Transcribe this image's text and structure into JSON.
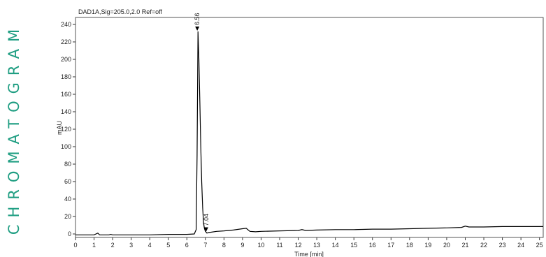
{
  "side_title": "CHROMATOGRAM",
  "chart_data": {
    "type": "line",
    "title": "DAD1A,Sig=205.0,2.0  Ref=off",
    "xlabel": "Time [min]",
    "ylabel": "mAU",
    "xlim": [
      0,
      25.2
    ],
    "ylim": [
      -4,
      248
    ],
    "x_ticks": [
      0,
      1,
      2,
      3,
      4,
      5,
      6,
      7,
      8,
      9,
      10,
      11,
      12,
      13,
      14,
      15,
      16,
      17,
      18,
      19,
      20,
      21,
      22,
      23,
      24,
      25
    ],
    "y_ticks": [
      0,
      20,
      40,
      60,
      80,
      100,
      120,
      140,
      160,
      180,
      200,
      220,
      240
    ],
    "grid": false,
    "line_color": "#000000",
    "series": [
      {
        "x": [
          0,
          1.0,
          1.2,
          1.3,
          1.4,
          1.8,
          1.9,
          2.0,
          3,
          4,
          5,
          6,
          6.4,
          6.5,
          6.55,
          6.6,
          6.65,
          6.7,
          6.75,
          6.8,
          6.85,
          6.9,
          6.95,
          7.0,
          7.04,
          7.08,
          7.15,
          7.3,
          7.6,
          8.0,
          8.5,
          9.0,
          9.2,
          9.4,
          9.7,
          10,
          11,
          12,
          12.2,
          12.4,
          13,
          14,
          15,
          16,
          17,
          18,
          19,
          20,
          20.8,
          21.0,
          21.2,
          22,
          23,
          24,
          25,
          25.2
        ],
        "y": [
          -1,
          -1,
          1,
          -1,
          -1,
          -1,
          -0.5,
          -1,
          -1,
          -1,
          -0.5,
          -0.5,
          0,
          5,
          90,
          232,
          200,
          150,
          100,
          60,
          30,
          12,
          6,
          3,
          2,
          1,
          1.5,
          2,
          3,
          3.5,
          4.5,
          6,
          6.5,
          3,
          2.5,
          3,
          3.5,
          4,
          5,
          4,
          4.5,
          5,
          5,
          5.5,
          5.5,
          6,
          6.5,
          7,
          7.5,
          9,
          8,
          8,
          8.5,
          8.5,
          8.5,
          8.5
        ]
      }
    ],
    "peaks": [
      {
        "x": 6.56,
        "y": 232,
        "label": "6.56"
      },
      {
        "x": 7.04,
        "y": 2,
        "label": "7.04"
      }
    ]
  }
}
